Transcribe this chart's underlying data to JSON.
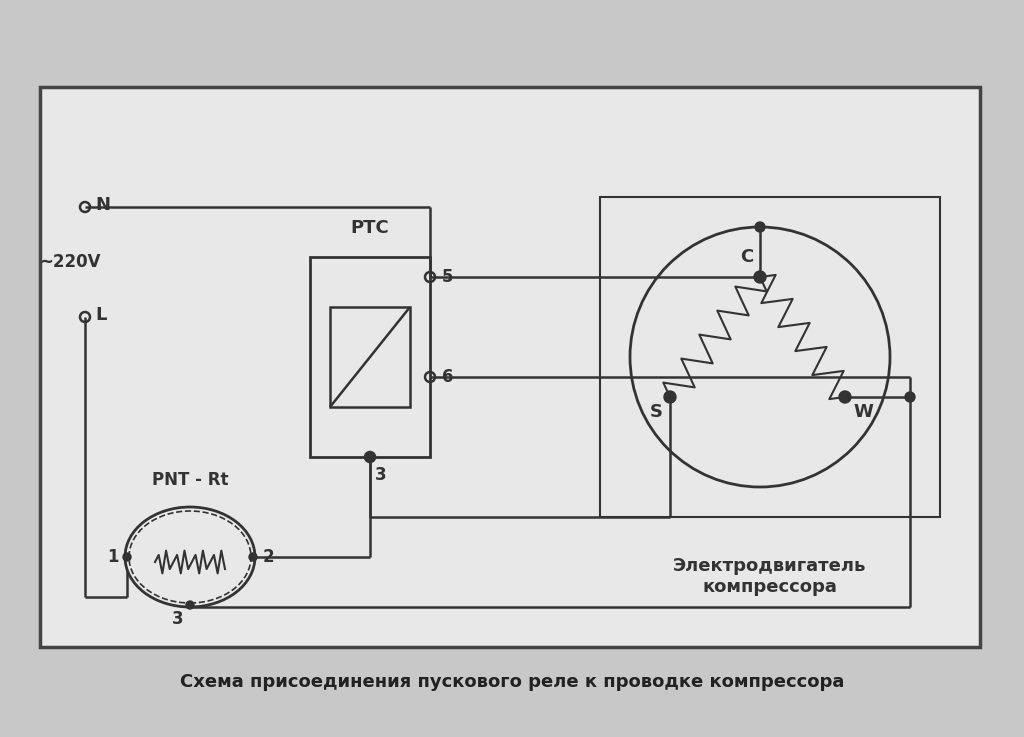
{
  "bg_color": "#d8d8d8",
  "border_color": "#333333",
  "line_color": "#333333",
  "title": "Схема присоединения пускового реле к проводке компрессора",
  "title_fontsize": 13,
  "label_N": "N",
  "label_L": "L",
  "label_220": "~220V",
  "label_PTC": "PTC",
  "label_PNT": "PNT - Rt",
  "label_motor": "Электродвигатель\nкомпрессора",
  "label_C": "C",
  "label_S": "S",
  "label_W": "W"
}
